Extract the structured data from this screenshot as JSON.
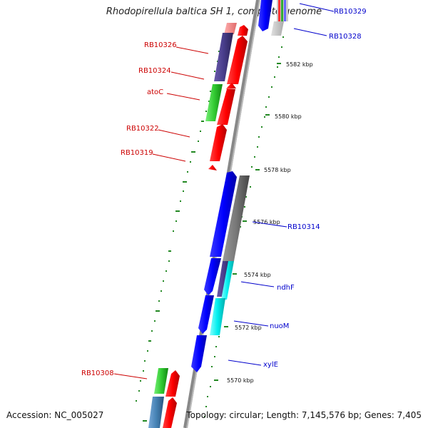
{
  "title": "Rhodopirellula baltica SH 1, complete genome",
  "footer": {
    "accession": "Accession: NC_005027",
    "stats": "Topology: circular; Length: 7,145,576 bp; Genes: 7,405"
  },
  "colors": {
    "forward": "#ff0000",
    "reverse": "#0000ff",
    "label_forward": "#cc0000",
    "label_reverse": "#0000cc",
    "gc_ticks": "#228822",
    "backbone": "#888888"
  },
  "scale_labels": [
    "5582 kbp",
    "5580 kbp",
    "5578 kbp",
    "5576 kbp",
    "5574 kbp",
    "5572 kbp",
    "5570 kbp"
  ],
  "gene_labels_left": [
    "RB10326",
    "RB10324",
    "atoC",
    "RB10322",
    "RB10319",
    "RB10308"
  ],
  "gene_labels_right": [
    "RB10329",
    "RB10328",
    "RB10314",
    "ndhF",
    "nuoM",
    "xylE"
  ]
}
